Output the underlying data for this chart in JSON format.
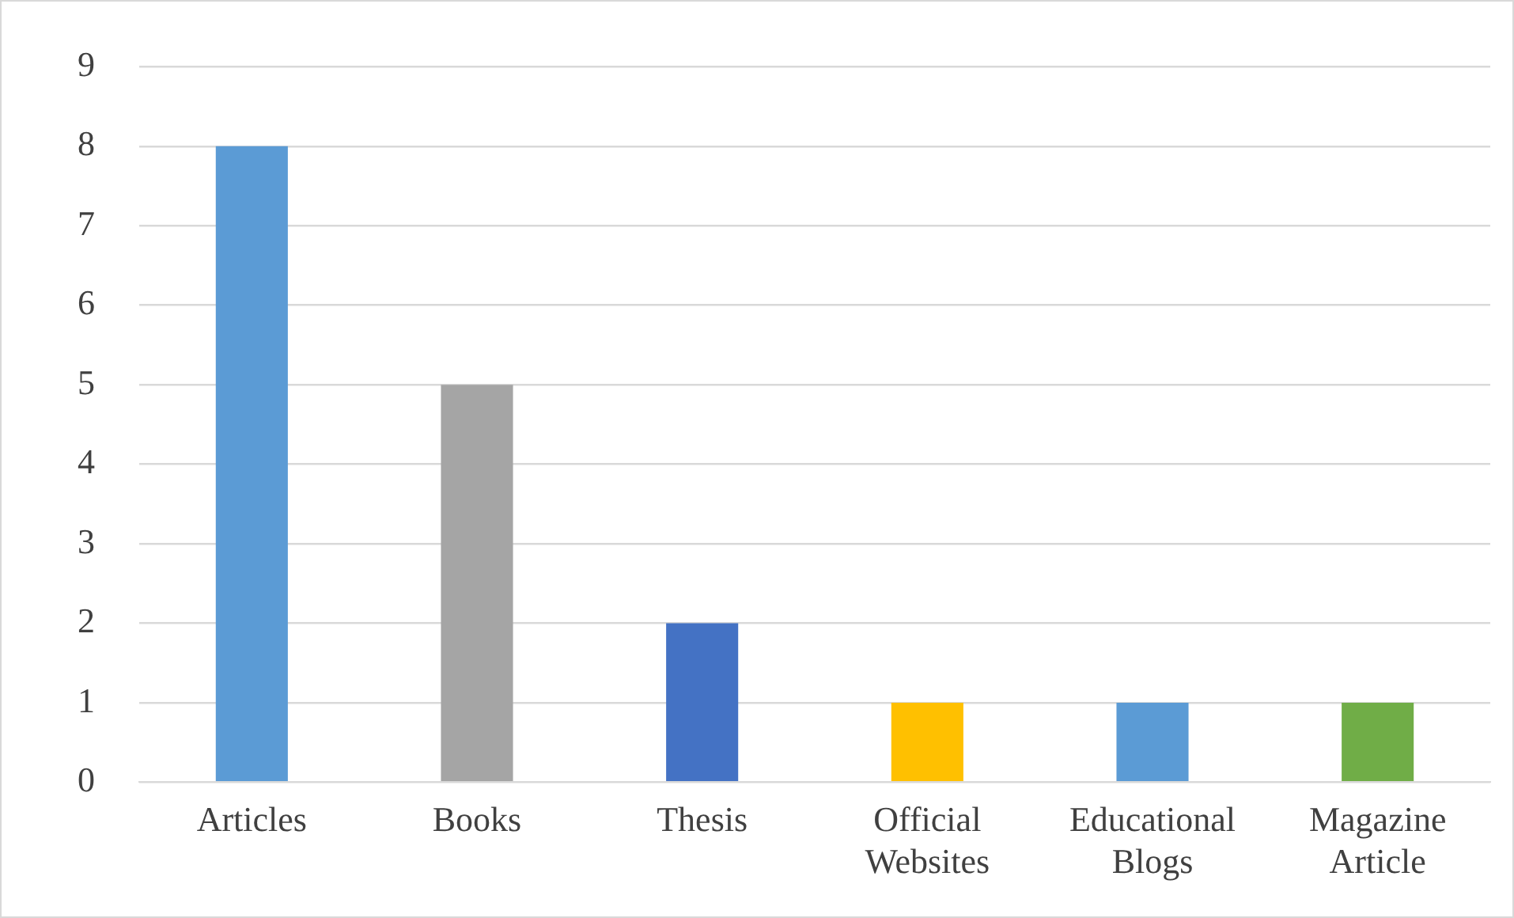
{
  "chart_data": {
    "type": "bar",
    "categories": [
      "Articles",
      "Books",
      "Thesis",
      "Official Websites",
      "Educational Blogs",
      "Magazine Article"
    ],
    "values": [
      8,
      5,
      2,
      1,
      1,
      1
    ],
    "colors": [
      "#5b9bd5",
      "#a5a5a5",
      "#4472c4",
      "#ffc000",
      "#5b9bd5",
      "#70ad47"
    ],
    "ylim": [
      0,
      9
    ],
    "yticks": [
      0,
      1,
      2,
      3,
      4,
      5,
      6,
      7,
      8,
      9
    ],
    "grid": "y",
    "legend": false
  }
}
